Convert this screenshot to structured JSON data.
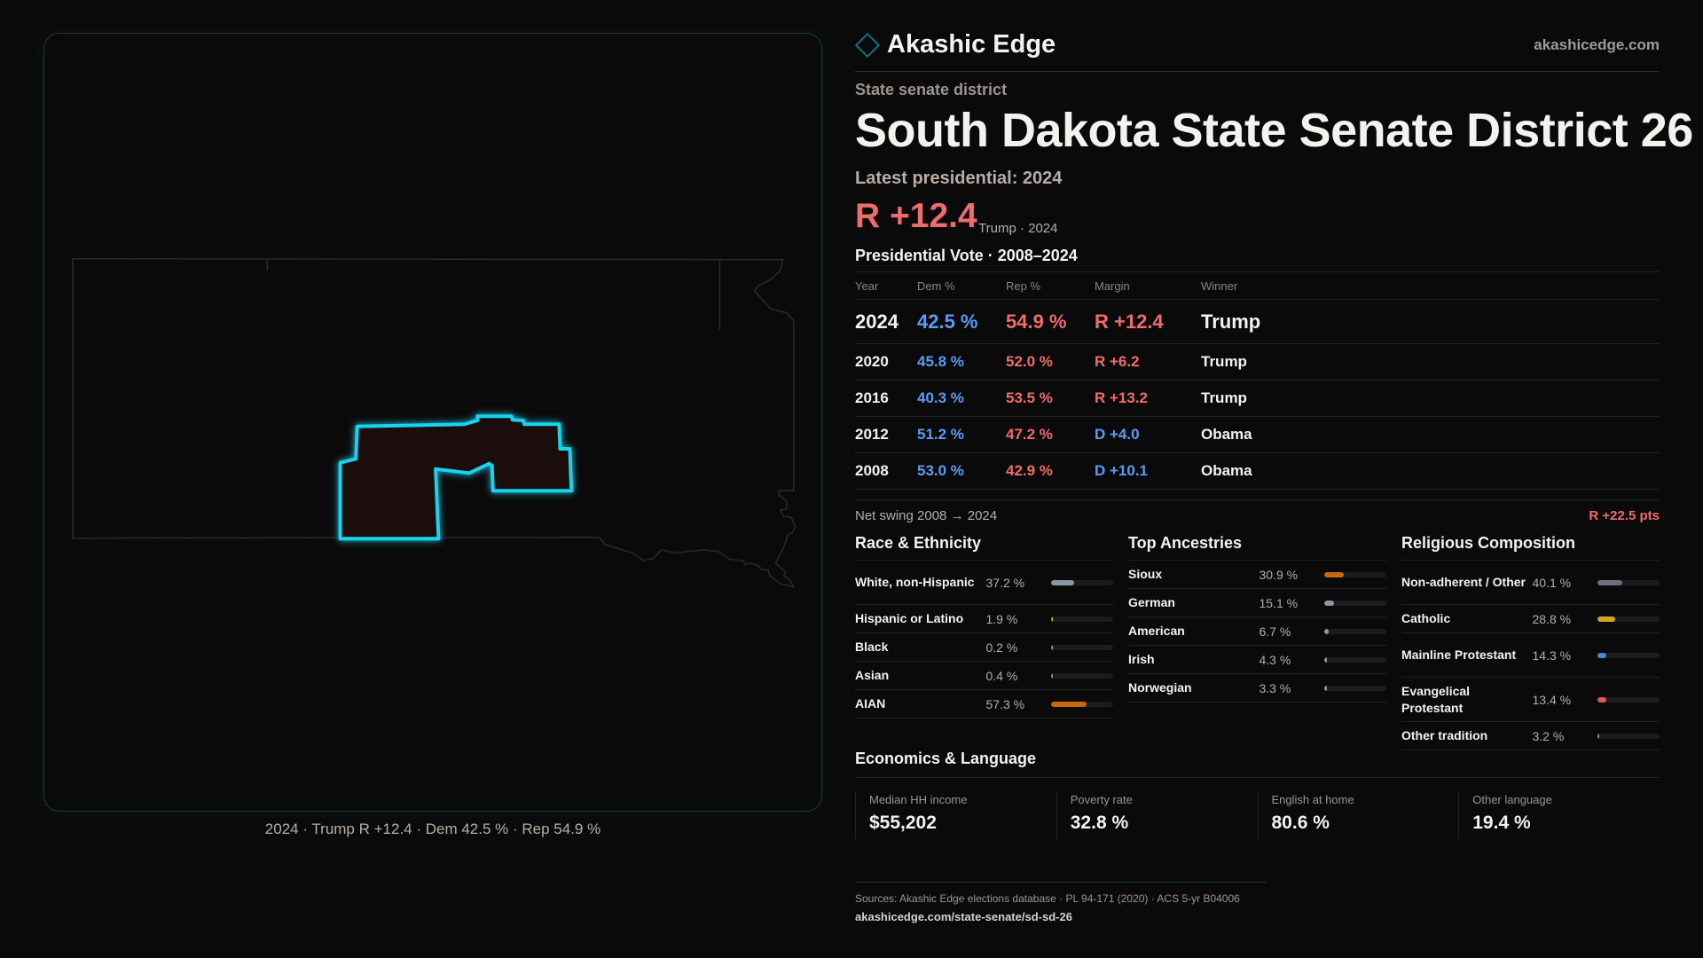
{
  "map": {
    "caption": "2024 · Trump R +12.4 · Dem 42.5 % · Rep 54.9 %",
    "district_stroke": "#19d4f0",
    "district_fill": "#1f0e10"
  },
  "header": {
    "brand": "Akashic Edge",
    "site": "akashicedge.com",
    "logo_icon": "diamond-icon"
  },
  "kicker": "State senate district",
  "title": "South Dakota State Senate District 26",
  "latest": "Latest presidential: 2024",
  "headline_margin": "R +12.4",
  "headline_sub": "Trump · 2024",
  "presidential": {
    "title": "Presidential Vote · 2008–2024",
    "columns": [
      "Year",
      "Dem %",
      "Rep %",
      "Margin",
      "Winner"
    ],
    "rows": [
      {
        "year": "2024",
        "dem": "42.5 %",
        "rep": "54.9 %",
        "margin": "R +12.4",
        "party": "rep",
        "winner": "Trump"
      },
      {
        "year": "2020",
        "dem": "45.8 %",
        "rep": "52.0 %",
        "margin": "R +6.2",
        "party": "rep",
        "winner": "Trump"
      },
      {
        "year": "2016",
        "dem": "40.3 %",
        "rep": "53.5 %",
        "margin": "R +13.2",
        "party": "rep",
        "winner": "Trump"
      },
      {
        "year": "2012",
        "dem": "51.2 %",
        "rep": "47.2 %",
        "margin": "D +4.0",
        "party": "dem",
        "winner": "Obama"
      },
      {
        "year": "2008",
        "dem": "53.0 %",
        "rep": "42.9 %",
        "margin": "D +10.1",
        "party": "dem",
        "winner": "Obama"
      }
    ]
  },
  "swing": {
    "label": "Net swing 2008 → 2024",
    "value": "R +22.5 pts"
  },
  "race": {
    "title": "Race & Ethnicity",
    "rows": [
      {
        "label": "White, non-Hispanic",
        "value": "37.2 %",
        "pct": 37.2,
        "color": "#8a95a5"
      },
      {
        "label": "Hispanic or Latino",
        "value": "1.9 %",
        "pct": 1.9,
        "color": "#d4a320"
      },
      {
        "label": "Black",
        "value": "0.2 %",
        "pct": 0.2,
        "color": "#8a95a5"
      },
      {
        "label": "Asian",
        "value": "0.4 %",
        "pct": 0.4,
        "color": "#8a95a5"
      },
      {
        "label": "AIAN",
        "value": "57.3 %",
        "pct": 57.3,
        "color": "#c8680a"
      }
    ]
  },
  "ancestry": {
    "title": "Top Ancestries",
    "rows": [
      {
        "label": "Sioux",
        "value": "30.9 %",
        "pct": 30.9,
        "color": "#c8680a"
      },
      {
        "label": "German",
        "value": "15.1 %",
        "pct": 15.1,
        "color": "#8a95a5"
      },
      {
        "label": "American",
        "value": "6.7 %",
        "pct": 6.7,
        "color": "#8a95a5"
      },
      {
        "label": "Irish",
        "value": "4.3 %",
        "pct": 4.3,
        "color": "#8a95a5"
      },
      {
        "label": "Norwegian",
        "value": "3.3 %",
        "pct": 3.3,
        "color": "#8a95a5"
      }
    ]
  },
  "religion": {
    "title": "Religious Composition",
    "rows": [
      {
        "label": "Non-adherent / Other",
        "value": "40.1 %",
        "pct": 40.1,
        "color": "#6b7080"
      },
      {
        "label": "Catholic",
        "value": "28.8 %",
        "pct": 28.8,
        "color": "#d4a320"
      },
      {
        "label": "Mainline Protestant",
        "value": "14.3 %",
        "pct": 14.3,
        "color": "#4a86d8"
      },
      {
        "label": "Evangelical Protestant",
        "value": "13.4 %",
        "pct": 13.4,
        "color": "#e05a5a"
      },
      {
        "label": "Other tradition",
        "value": "3.2 %",
        "pct": 3.2,
        "color": "#8a95a5"
      }
    ]
  },
  "economics": {
    "title": "Economics & Language",
    "cards": [
      {
        "label": "Median HH income",
        "value": "$55,202"
      },
      {
        "label": "Poverty rate",
        "value": "32.8 %"
      },
      {
        "label": "English at home",
        "value": "80.6 %"
      },
      {
        "label": "Other language",
        "value": "19.4 %"
      }
    ]
  },
  "footer": {
    "sources": "Sources: Akashic Edge elections database · PL 94-171 (2020) · ACS 5-yr B04006",
    "url": "akashicedge.com/state-senate/sd-sd-26"
  }
}
